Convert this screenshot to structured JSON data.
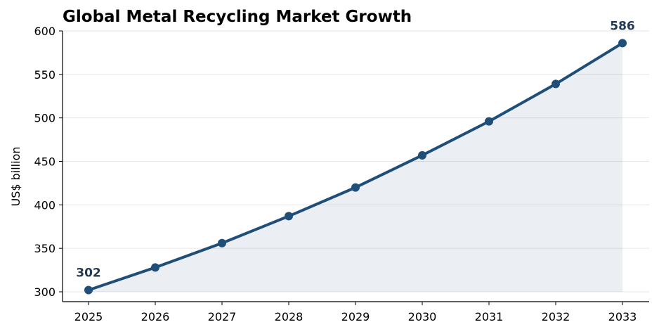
{
  "chart_data": {
    "type": "area",
    "title": "Global Metal Recycling Market Growth",
    "xlabel": "",
    "ylabel": "US$ billion",
    "x": [
      "2025",
      "2026",
      "2027",
      "2028",
      "2029",
      "2030",
      "2031",
      "2032",
      "2033"
    ],
    "series": [
      {
        "values": [
          302,
          328,
          356,
          387,
          420,
          457,
          496,
          539,
          586
        ]
      }
    ],
    "ylim": [
      300,
      600
    ],
    "y_ticks": [
      300,
      350,
      400,
      450,
      500,
      550,
      600
    ],
    "grid": "horizontal",
    "data_labels": [
      {
        "index": 0,
        "text": "302"
      },
      {
        "index": 8,
        "text": "586"
      }
    ],
    "colors": {
      "line": "#1f4e79",
      "fill": "#1f4e79",
      "label": "#243a52"
    }
  }
}
